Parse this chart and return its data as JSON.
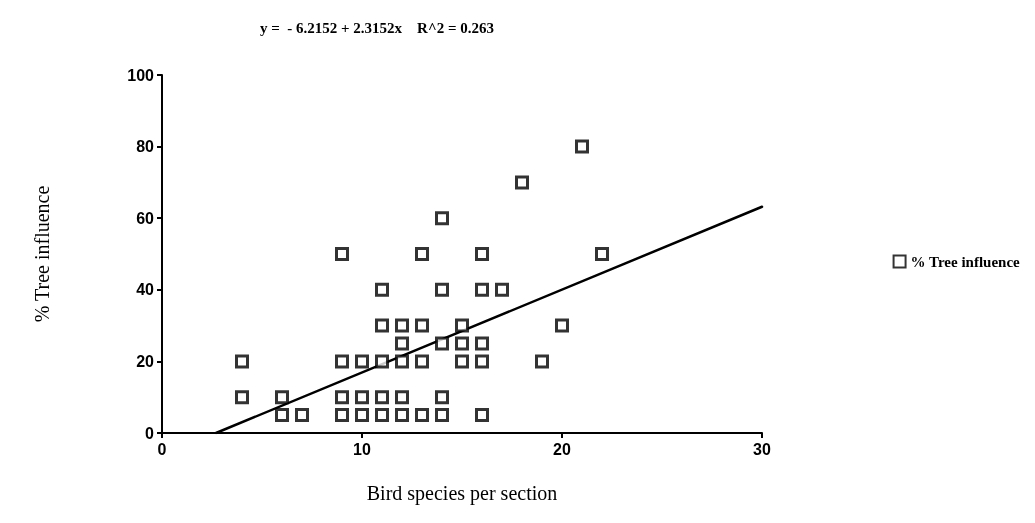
{
  "chart_data": {
    "type": "scatter",
    "xlabel": "Bird species per section",
    "ylabel": "% Tree influence",
    "annotations": [
      "y =  - 6.2152 + 2.3152x    R^2 = 0.263"
    ],
    "xlim": [
      0,
      30
    ],
    "xticks": [
      0,
      10,
      20,
      30
    ],
    "ylim": [
      0,
      100
    ],
    "yticks": [
      0,
      20,
      40,
      60,
      80,
      100
    ],
    "grid": false,
    "legend": "right",
    "marker": "square",
    "series": [
      {
        "name": "% Tree influence",
        "color": "#000000",
        "x": [
          6,
          7,
          9,
          10,
          11,
          12,
          13,
          14,
          16,
          4,
          6,
          9,
          10,
          11,
          12,
          14,
          4,
          9,
          10,
          11,
          12,
          13,
          15,
          16,
          19,
          12,
          14,
          15,
          16,
          11,
          12,
          13,
          15,
          20,
          11,
          14,
          16,
          17,
          9,
          13,
          16,
          22,
          14,
          18,
          21
        ],
        "values": [
          5,
          5,
          5,
          5,
          5,
          5,
          5,
          5,
          5,
          10,
          10,
          10,
          10,
          10,
          10,
          10,
          20,
          20,
          20,
          20,
          20,
          20,
          20,
          20,
          20,
          25,
          25,
          25,
          25,
          30,
          30,
          30,
          30,
          30,
          40,
          40,
          40,
          40,
          50,
          50,
          50,
          50,
          60,
          70,
          80
        ]
      },
      {
        "type": "line",
        "color": "#000000",
        "marker": "none",
        "line_style": "solid",
        "x": [
          2.7,
          30
        ],
        "values": [
          0,
          63.2
        ]
      }
    ]
  }
}
